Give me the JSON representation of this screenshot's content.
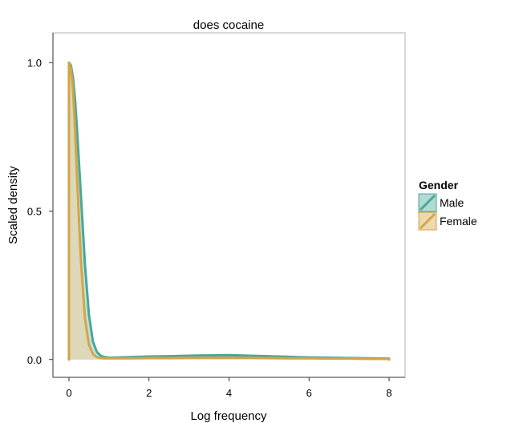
{
  "chart_data": {
    "type": "area",
    "title": "does cocaine",
    "xlabel": "Log frequency",
    "ylabel": "Scaled density",
    "xlim": [
      -0.4,
      8.4
    ],
    "ylim": [
      -0.06,
      1.1
    ],
    "x_ticks": [
      0,
      2,
      4,
      6,
      8
    ],
    "x_tick_labels": [
      "0",
      "2",
      "4",
      "6",
      "8"
    ],
    "y_ticks": [
      0,
      0.5,
      1
    ],
    "y_tick_labels": [
      "0.0",
      "0.5",
      "1.0"
    ],
    "grid": false,
    "legend": {
      "title": "Gender",
      "position": "right"
    },
    "series": [
      {
        "name": "Male",
        "color": "#4aa79a",
        "fill": "#a5d3cc",
        "x": [
          0,
          0.05,
          0.1,
          0.15,
          0.2,
          0.3,
          0.4,
          0.5,
          0.6,
          0.7,
          0.8,
          0.9,
          1.0,
          1.25,
          1.5,
          2.0,
          2.5,
          3.0,
          3.5,
          4.0,
          4.5,
          5.0,
          5.5,
          6.0,
          6.5,
          7.0,
          7.5,
          8.0
        ],
        "values": [
          1.0,
          0.99,
          0.95,
          0.88,
          0.78,
          0.55,
          0.32,
          0.15,
          0.06,
          0.025,
          0.012,
          0.008,
          0.006,
          0.007,
          0.008,
          0.01,
          0.011,
          0.013,
          0.014,
          0.015,
          0.013,
          0.011,
          0.009,
          0.007,
          0.006,
          0.005,
          0.004,
          0.003
        ]
      },
      {
        "name": "Female",
        "color": "#d4a548",
        "fill": "#e9d2a3",
        "x": [
          0,
          0.05,
          0.1,
          0.15,
          0.2,
          0.3,
          0.4,
          0.5,
          0.6,
          0.7,
          0.8,
          0.9,
          1.0,
          1.25,
          1.5,
          2.0,
          2.5,
          3.0,
          3.5,
          4.0,
          4.5,
          5.0,
          5.5,
          6.0,
          6.5,
          7.0,
          7.5,
          8.0
        ],
        "values": [
          1.0,
          0.98,
          0.91,
          0.78,
          0.62,
          0.33,
          0.14,
          0.05,
          0.018,
          0.008,
          0.005,
          0.004,
          0.004,
          0.004,
          0.004,
          0.005,
          0.005,
          0.006,
          0.006,
          0.006,
          0.006,
          0.005,
          0.004,
          0.004,
          0.003,
          0.003,
          0.002,
          0.002
        ]
      }
    ]
  }
}
